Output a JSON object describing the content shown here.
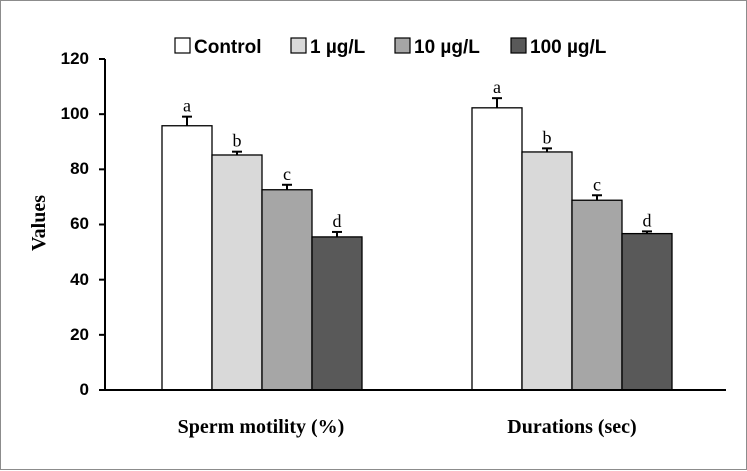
{
  "chart_data": {
    "type": "bar",
    "title": "",
    "xlabel": "",
    "ylabel": "Values",
    "ylim": [
      0,
      120
    ],
    "yticks": [
      "0",
      "20",
      "40",
      "60",
      "80",
      "100",
      "120"
    ],
    "categories": [
      "Sperm motility  (%)",
      "Durations (sec)"
    ],
    "series": [
      {
        "name": "Control",
        "color": "#ffffff",
        "values": [
          95.8,
          102.3
        ],
        "errors": [
          3.3,
          3.5
        ],
        "labels": [
          "a",
          "a"
        ]
      },
      {
        "name": "1 µg/L",
        "color": "#d9d9d9",
        "values": [
          85.2,
          86.3
        ],
        "errors": [
          1.2,
          1.3
        ],
        "labels": [
          "b",
          "b"
        ]
      },
      {
        "name": "10 µg/L",
        "color": "#a6a6a6",
        "values": [
          72.6,
          68.8
        ],
        "errors": [
          1.8,
          1.8
        ],
        "labels": [
          "c",
          "c"
        ]
      },
      {
        "name": "100 µg/L",
        "color": "#595959",
        "values": [
          55.5,
          56.7
        ],
        "errors": [
          1.8,
          0.8
        ],
        "labels": [
          "d",
          "d"
        ]
      }
    ],
    "legend_position": "top-center",
    "grid": false
  }
}
